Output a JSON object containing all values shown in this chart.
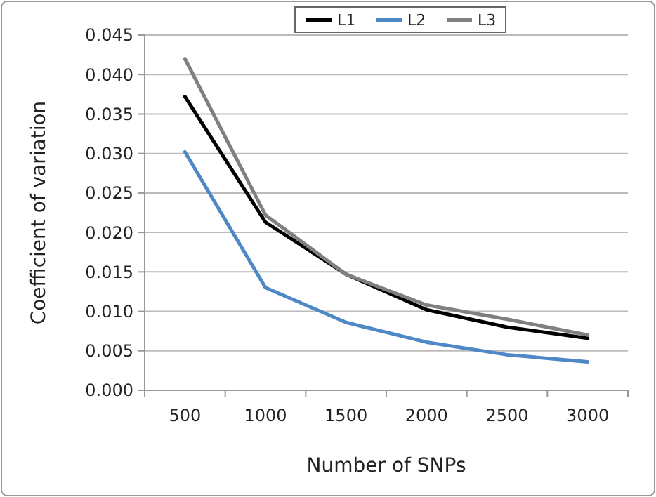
{
  "chart_data": {
    "type": "line",
    "xlabel": "Number of SNPs",
    "ylabel": "Coefficient of variation",
    "categories": [
      "500",
      "1000",
      "1500",
      "2000",
      "2500",
      "3000"
    ],
    "series": [
      {
        "name": "L1",
        "color": "#000000",
        "values": [
          0.0372,
          0.0213,
          0.0147,
          0.0102,
          0.008,
          0.0066
        ]
      },
      {
        "name": "L2",
        "color": "#4f88c6",
        "values": [
          0.0302,
          0.013,
          0.0086,
          0.0061,
          0.0045,
          0.0036
        ]
      },
      {
        "name": "L3",
        "color": "#808080",
        "values": [
          0.042,
          0.0222,
          0.0147,
          0.0108,
          0.009,
          0.007
        ]
      }
    ],
    "ylim": [
      0,
      0.045
    ],
    "yticks": [
      {
        "value": 0,
        "label": "0.000"
      },
      {
        "value": 0.005,
        "label": "0.005"
      },
      {
        "value": 0.01,
        "label": "0.010"
      },
      {
        "value": 0.015,
        "label": "0.015"
      },
      {
        "value": 0.02,
        "label": "0.020"
      },
      {
        "value": 0.025,
        "label": "0.025"
      },
      {
        "value": 0.03,
        "label": "0.030"
      },
      {
        "value": 0.035,
        "label": "0.035"
      },
      {
        "value": 0.04,
        "label": "0.040"
      },
      {
        "value": 0.045,
        "label": "0.045"
      }
    ],
    "grid": "y",
    "legend": "top",
    "marker": "none",
    "line_style": "solid"
  }
}
